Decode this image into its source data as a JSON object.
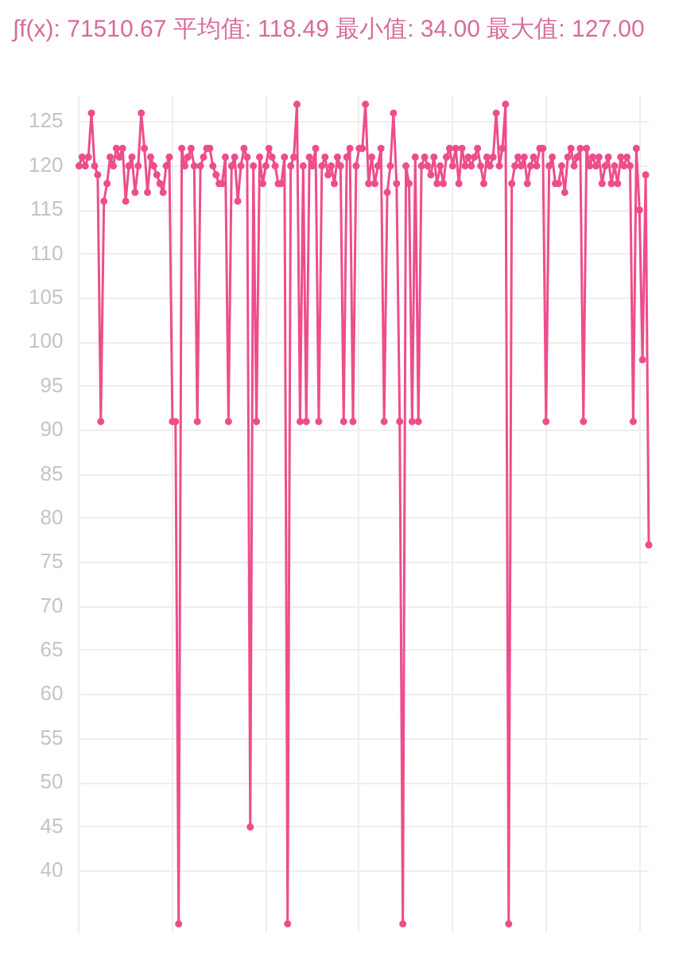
{
  "chart_data": {
    "type": "line",
    "title": "∫f(x): 71510.67 平均值: 118.49 最小值: 34.00 最大值: 127.00",
    "categories": [
      null,
      null,
      null,
      null,
      null,
      null,
      null,
      null,
      null,
      null,
      null,
      null,
      null,
      null,
      null,
      null,
      null,
      null,
      null,
      null,
      null,
      null,
      null,
      null,
      null,
      null,
      null,
      null,
      null,
      null,
      null,
      null,
      null,
      null,
      null,
      null,
      null,
      null,
      null,
      null,
      null,
      null,
      null,
      null,
      null,
      null,
      null,
      null,
      null,
      null,
      null,
      null,
      null,
      null,
      null,
      null,
      null,
      null,
      null,
      null,
      null,
      null,
      null,
      null,
      null,
      null,
      null,
      null,
      null,
      null,
      null,
      null,
      null,
      null,
      null,
      null,
      null,
      null,
      null,
      null,
      null,
      null,
      null,
      null,
      null,
      null,
      null,
      null,
      null,
      null,
      null,
      null,
      null,
      null,
      null,
      null,
      null,
      null,
      null,
      null,
      null,
      null,
      null,
      null,
      null,
      null,
      null,
      null,
      null,
      null,
      null,
      null,
      null,
      null,
      null,
      null,
      null,
      null,
      null,
      null,
      null,
      null,
      null,
      null,
      null,
      null,
      null,
      null,
      null,
      null,
      null,
      null,
      null,
      null,
      null,
      null,
      null,
      null,
      null,
      null,
      null,
      null,
      null,
      null,
      null,
      null,
      null,
      null,
      null,
      null,
      null,
      null,
      null,
      null,
      null,
      null,
      null,
      null,
      null,
      null,
      null,
      null,
      null,
      null,
      null,
      null,
      null,
      null,
      null,
      null,
      null,
      null,
      null,
      null,
      null,
      null,
      null,
      null,
      null,
      null,
      null,
      null,
      null,
      null
    ],
    "series": [
      {
        "color": "#ee4d8b",
        "values": [
          120,
          121,
          120,
          121,
          126,
          120,
          119,
          91,
          116,
          118,
          121,
          120,
          122,
          121,
          122,
          116,
          120,
          121,
          117,
          120,
          126,
          122,
          117,
          121,
          120,
          119,
          118,
          117,
          120,
          121,
          91,
          91,
          34,
          122,
          120,
          121,
          122,
          120,
          91,
          120,
          121,
          122,
          122,
          120,
          119,
          118,
          118,
          121,
          91,
          120,
          121,
          116,
          120,
          122,
          121,
          45,
          120,
          91,
          121,
          118,
          120,
          122,
          121,
          120,
          118,
          118,
          121,
          34,
          120,
          121,
          127,
          91,
          120,
          91,
          121,
          120,
          122,
          91,
          120,
          121,
          119,
          120,
          118,
          121,
          120,
          91,
          121,
          122,
          91,
          120,
          122,
          122,
          127,
          118,
          121,
          118,
          120,
          122,
          91,
          117,
          120,
          126,
          118,
          91,
          34,
          120,
          118,
          91,
          121,
          91,
          120,
          121,
          120,
          119,
          121,
          118,
          120,
          118,
          121,
          122,
          120,
          122,
          118,
          122,
          120,
          121,
          120,
          121,
          122,
          120,
          118,
          121,
          120,
          121,
          126,
          120,
          122,
          127,
          34,
          118,
          120,
          121,
          120,
          121,
          118,
          120,
          121,
          120,
          122,
          122,
          91,
          120,
          121,
          118,
          118,
          120,
          117,
          121,
          122,
          120,
          121,
          122,
          91,
          122,
          120,
          121,
          120,
          121,
          118,
          120,
          121,
          118,
          120,
          118,
          121,
          120,
          121,
          120,
          91,
          122,
          115,
          98,
          119,
          77
        ]
      }
    ],
    "ylim": [
      33,
      128
    ],
    "yticks": [
      40,
      45,
      50,
      55,
      60,
      65,
      70,
      75,
      80,
      85,
      90,
      95,
      100,
      105,
      110,
      115,
      120,
      125
    ],
    "grid": true,
    "tick_labels": "y",
    "marker": "circle",
    "line_style": "solid"
  }
}
